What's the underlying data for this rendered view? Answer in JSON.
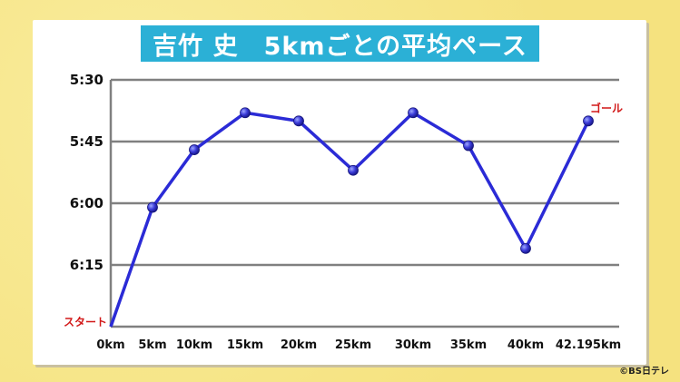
{
  "title": "吉竹 史　5kmごとの平均ペース",
  "copyright": "©BS日テレ",
  "chart_data": {
    "type": "line",
    "categories": [
      "0km",
      "5km",
      "10km",
      "15km",
      "20km",
      "25km",
      "30km",
      "35km",
      "40km",
      "42.195km"
    ],
    "y_ticks": [
      "5:30",
      "5:45",
      "6:00",
      "6:15"
    ],
    "y_tick_values": [
      330,
      345,
      360,
      375
    ],
    "y_range_seconds": [
      330,
      390
    ],
    "y_inverted": true,
    "series": [
      {
        "pace_seconds_per_km": [
          390,
          361,
          347,
          338,
          340,
          352,
          338,
          346,
          371,
          340
        ],
        "color": "#2b2bd6"
      }
    ],
    "annotations": [
      {
        "text": "スタート",
        "category": "0km",
        "color": "#d21a1a"
      },
      {
        "text": "ゴール",
        "category": "42.195km",
        "color": "#d21a1a"
      }
    ],
    "grid": true
  }
}
